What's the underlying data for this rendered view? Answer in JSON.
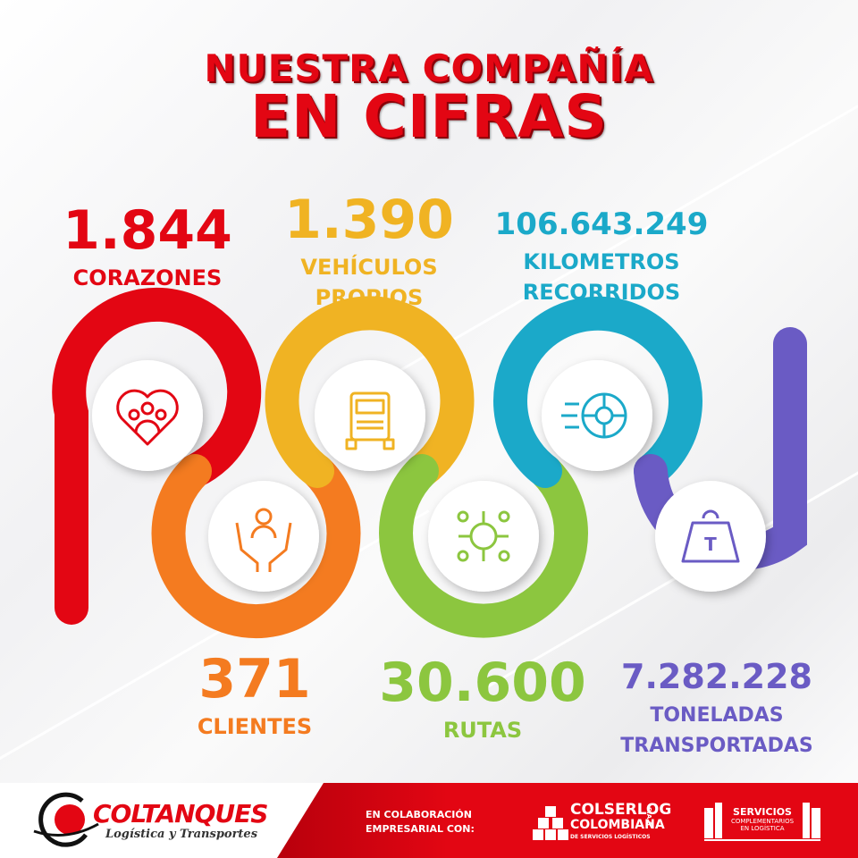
{
  "title": {
    "line1": "NUESTRA COMPAÑÍA",
    "line2": "EN CIFRAS"
  },
  "colors": {
    "red": "#e30613",
    "orange": "#f47b20",
    "yellow": "#f0b323",
    "green": "#8cc63f",
    "blue": "#1ba9c9",
    "purple": "#6a5bc4"
  },
  "stats": {
    "corazones": {
      "value": "1.844",
      "label": "CORAZONES",
      "icon": "heart-people-icon",
      "color": "#e30613"
    },
    "vehiculos": {
      "value": "1.390",
      "label1": "VEHÍCULOS",
      "label2": "PROPIOS",
      "icon": "truck-icon",
      "color": "#f0b323"
    },
    "kilometros": {
      "value": "106.643.249",
      "label1": "KILOMETROS",
      "label2": "RECORRIDOS",
      "icon": "wheel-icon",
      "color": "#1ba9c9"
    },
    "clientes": {
      "value": "371",
      "label": "CLIENTES",
      "icon": "hands-person-icon",
      "color": "#f47b20"
    },
    "rutas": {
      "value": "30.600",
      "label": "RUTAS",
      "icon": "roundabout-routes-icon",
      "color": "#8cc63f"
    },
    "toneladas": {
      "value": "7.282.228",
      "label1": "TONELADAS",
      "label2": "TRANSPORTADAS",
      "icon": "weight-icon",
      "color": "#6a5bc4"
    }
  },
  "footer": {
    "brand": "COLTANQUES",
    "tagline": "Logística y Transportes",
    "collab_line1": "EN COLABORACIÓN",
    "collab_line2": "EMPRESARIAL CON:",
    "partner1_name1": "COLSERLOG",
    "partner1_name2": "COLOMBIANA",
    "partner1_sub": "DE SERVICIOS LOGÍSTICOS",
    "partner1_suffix": "S.A.S",
    "partner2_name": "SERVICIOS",
    "partner2_sub1": "COMPLEMENTARIOS",
    "partner2_sub2": "EN LOGÍSTICA"
  }
}
